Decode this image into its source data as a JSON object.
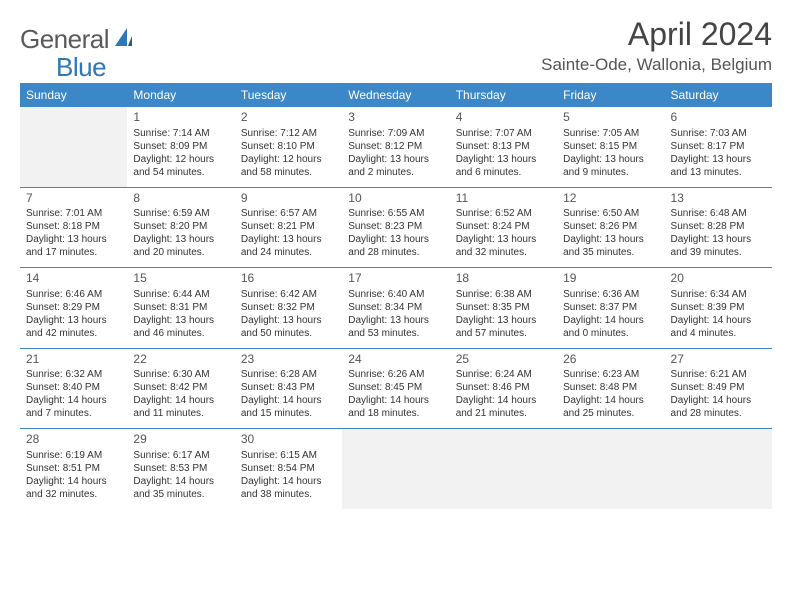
{
  "brand": {
    "word1": "General",
    "word2": "Blue"
  },
  "title": "April 2024",
  "location": "Sainte-Ode, Wallonia, Belgium",
  "colors": {
    "header_bg": "#3b87c8",
    "header_text": "#ffffff",
    "blank_bg": "#f2f2f2",
    "rule": "#3b87c8",
    "text": "#333333",
    "brand_gray": "#5a5a5a",
    "brand_blue": "#2e77b8"
  },
  "day_headers": [
    "Sunday",
    "Monday",
    "Tuesday",
    "Wednesday",
    "Thursday",
    "Friday",
    "Saturday"
  ],
  "weeks": [
    [
      {
        "blank": true
      },
      {
        "n": "1",
        "sunrise": "Sunrise: 7:14 AM",
        "sunset": "Sunset: 8:09 PM",
        "dl1": "Daylight: 12 hours",
        "dl2": "and 54 minutes."
      },
      {
        "n": "2",
        "sunrise": "Sunrise: 7:12 AM",
        "sunset": "Sunset: 8:10 PM",
        "dl1": "Daylight: 12 hours",
        "dl2": "and 58 minutes."
      },
      {
        "n": "3",
        "sunrise": "Sunrise: 7:09 AM",
        "sunset": "Sunset: 8:12 PM",
        "dl1": "Daylight: 13 hours",
        "dl2": "and 2 minutes."
      },
      {
        "n": "4",
        "sunrise": "Sunrise: 7:07 AM",
        "sunset": "Sunset: 8:13 PM",
        "dl1": "Daylight: 13 hours",
        "dl2": "and 6 minutes."
      },
      {
        "n": "5",
        "sunrise": "Sunrise: 7:05 AM",
        "sunset": "Sunset: 8:15 PM",
        "dl1": "Daylight: 13 hours",
        "dl2": "and 9 minutes."
      },
      {
        "n": "6",
        "sunrise": "Sunrise: 7:03 AM",
        "sunset": "Sunset: 8:17 PM",
        "dl1": "Daylight: 13 hours",
        "dl2": "and 13 minutes."
      }
    ],
    [
      {
        "n": "7",
        "sunrise": "Sunrise: 7:01 AM",
        "sunset": "Sunset: 8:18 PM",
        "dl1": "Daylight: 13 hours",
        "dl2": "and 17 minutes."
      },
      {
        "n": "8",
        "sunrise": "Sunrise: 6:59 AM",
        "sunset": "Sunset: 8:20 PM",
        "dl1": "Daylight: 13 hours",
        "dl2": "and 20 minutes."
      },
      {
        "n": "9",
        "sunrise": "Sunrise: 6:57 AM",
        "sunset": "Sunset: 8:21 PM",
        "dl1": "Daylight: 13 hours",
        "dl2": "and 24 minutes."
      },
      {
        "n": "10",
        "sunrise": "Sunrise: 6:55 AM",
        "sunset": "Sunset: 8:23 PM",
        "dl1": "Daylight: 13 hours",
        "dl2": "and 28 minutes."
      },
      {
        "n": "11",
        "sunrise": "Sunrise: 6:52 AM",
        "sunset": "Sunset: 8:24 PM",
        "dl1": "Daylight: 13 hours",
        "dl2": "and 32 minutes."
      },
      {
        "n": "12",
        "sunrise": "Sunrise: 6:50 AM",
        "sunset": "Sunset: 8:26 PM",
        "dl1": "Daylight: 13 hours",
        "dl2": "and 35 minutes."
      },
      {
        "n": "13",
        "sunrise": "Sunrise: 6:48 AM",
        "sunset": "Sunset: 8:28 PM",
        "dl1": "Daylight: 13 hours",
        "dl2": "and 39 minutes."
      }
    ],
    [
      {
        "n": "14",
        "sunrise": "Sunrise: 6:46 AM",
        "sunset": "Sunset: 8:29 PM",
        "dl1": "Daylight: 13 hours",
        "dl2": "and 42 minutes."
      },
      {
        "n": "15",
        "sunrise": "Sunrise: 6:44 AM",
        "sunset": "Sunset: 8:31 PM",
        "dl1": "Daylight: 13 hours",
        "dl2": "and 46 minutes."
      },
      {
        "n": "16",
        "sunrise": "Sunrise: 6:42 AM",
        "sunset": "Sunset: 8:32 PM",
        "dl1": "Daylight: 13 hours",
        "dl2": "and 50 minutes."
      },
      {
        "n": "17",
        "sunrise": "Sunrise: 6:40 AM",
        "sunset": "Sunset: 8:34 PM",
        "dl1": "Daylight: 13 hours",
        "dl2": "and 53 minutes."
      },
      {
        "n": "18",
        "sunrise": "Sunrise: 6:38 AM",
        "sunset": "Sunset: 8:35 PM",
        "dl1": "Daylight: 13 hours",
        "dl2": "and 57 minutes."
      },
      {
        "n": "19",
        "sunrise": "Sunrise: 6:36 AM",
        "sunset": "Sunset: 8:37 PM",
        "dl1": "Daylight: 14 hours",
        "dl2": "and 0 minutes."
      },
      {
        "n": "20",
        "sunrise": "Sunrise: 6:34 AM",
        "sunset": "Sunset: 8:39 PM",
        "dl1": "Daylight: 14 hours",
        "dl2": "and 4 minutes."
      }
    ],
    [
      {
        "n": "21",
        "sunrise": "Sunrise: 6:32 AM",
        "sunset": "Sunset: 8:40 PM",
        "dl1": "Daylight: 14 hours",
        "dl2": "and 7 minutes."
      },
      {
        "n": "22",
        "sunrise": "Sunrise: 6:30 AM",
        "sunset": "Sunset: 8:42 PM",
        "dl1": "Daylight: 14 hours",
        "dl2": "and 11 minutes."
      },
      {
        "n": "23",
        "sunrise": "Sunrise: 6:28 AM",
        "sunset": "Sunset: 8:43 PM",
        "dl1": "Daylight: 14 hours",
        "dl2": "and 15 minutes."
      },
      {
        "n": "24",
        "sunrise": "Sunrise: 6:26 AM",
        "sunset": "Sunset: 8:45 PM",
        "dl1": "Daylight: 14 hours",
        "dl2": "and 18 minutes."
      },
      {
        "n": "25",
        "sunrise": "Sunrise: 6:24 AM",
        "sunset": "Sunset: 8:46 PM",
        "dl1": "Daylight: 14 hours",
        "dl2": "and 21 minutes."
      },
      {
        "n": "26",
        "sunrise": "Sunrise: 6:23 AM",
        "sunset": "Sunset: 8:48 PM",
        "dl1": "Daylight: 14 hours",
        "dl2": "and 25 minutes."
      },
      {
        "n": "27",
        "sunrise": "Sunrise: 6:21 AM",
        "sunset": "Sunset: 8:49 PM",
        "dl1": "Daylight: 14 hours",
        "dl2": "and 28 minutes."
      }
    ],
    [
      {
        "n": "28",
        "sunrise": "Sunrise: 6:19 AM",
        "sunset": "Sunset: 8:51 PM",
        "dl1": "Daylight: 14 hours",
        "dl2": "and 32 minutes."
      },
      {
        "n": "29",
        "sunrise": "Sunrise: 6:17 AM",
        "sunset": "Sunset: 8:53 PM",
        "dl1": "Daylight: 14 hours",
        "dl2": "and 35 minutes."
      },
      {
        "n": "30",
        "sunrise": "Sunrise: 6:15 AM",
        "sunset": "Sunset: 8:54 PM",
        "dl1": "Daylight: 14 hours",
        "dl2": "and 38 minutes."
      },
      {
        "blank": true
      },
      {
        "blank": true
      },
      {
        "blank": true
      },
      {
        "blank": true
      }
    ]
  ]
}
